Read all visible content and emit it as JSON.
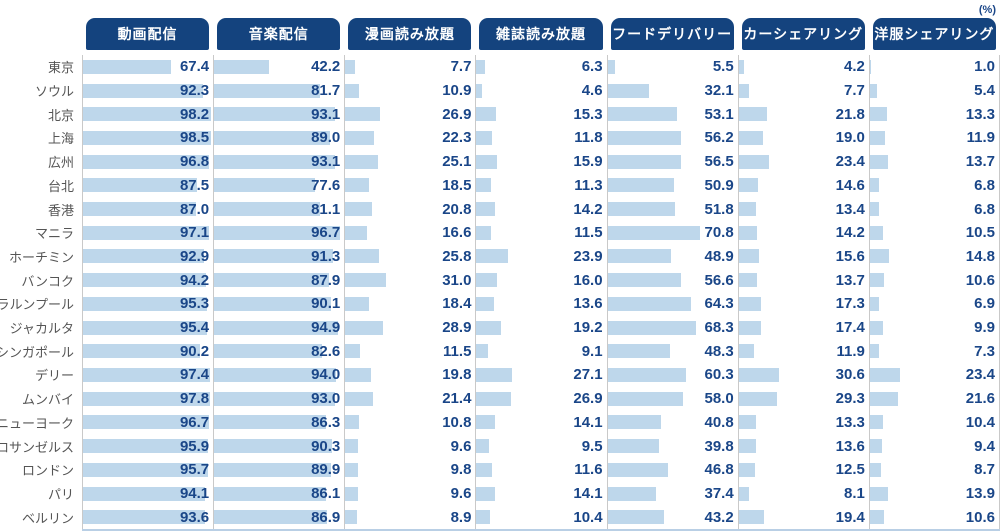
{
  "unit_label": "(%)",
  "chart_data": {
    "type": "bar",
    "orientation": "horizontal",
    "title": "",
    "unit_label": "(%)",
    "xlim": [
      0,
      100
    ],
    "grid": false,
    "legend_position": "column-headers-top",
    "categories": [
      "東京",
      "ソウル",
      "北京",
      "上海",
      "広州",
      "台北",
      "香港",
      "マニラ",
      "ホーチミン",
      "バンコク",
      "クアラルンプール",
      "ジャカルタ",
      "シンガポール",
      "デリー",
      "ムンバイ",
      "ニューヨーク",
      "ロサンゼルス",
      "ロンドン",
      "パリ",
      "ベルリン"
    ],
    "series": [
      {
        "name": "動画配信",
        "values": [
          67.4,
          92.3,
          98.2,
          98.5,
          96.8,
          87.5,
          87.0,
          97.1,
          92.9,
          94.2,
          95.3,
          95.4,
          90.2,
          97.4,
          97.8,
          96.7,
          95.9,
          95.7,
          94.1,
          93.6
        ]
      },
      {
        "name": "音楽配信",
        "values": [
          42.2,
          81.7,
          93.1,
          89.0,
          93.1,
          77.6,
          81.1,
          96.7,
          91.3,
          87.9,
          90.1,
          94.9,
          82.6,
          94.0,
          93.0,
          86.3,
          90.3,
          89.9,
          86.1,
          86.9
        ]
      },
      {
        "name": "漫画読み放題",
        "values": [
          7.7,
          10.9,
          26.9,
          22.3,
          25.1,
          18.5,
          20.8,
          16.6,
          25.8,
          31.0,
          18.4,
          28.9,
          11.5,
          19.8,
          21.4,
          10.8,
          9.6,
          9.8,
          9.6,
          8.9
        ]
      },
      {
        "name": "雑誌読み放題",
        "values": [
          6.3,
          4.6,
          15.3,
          11.8,
          15.9,
          11.3,
          14.2,
          11.5,
          23.9,
          16.0,
          13.6,
          19.2,
          9.1,
          27.1,
          26.9,
          14.1,
          9.5,
          11.6,
          14.1,
          10.4
        ]
      },
      {
        "name": "フードデリバリー",
        "values": [
          5.5,
          32.1,
          53.1,
          56.2,
          56.5,
          50.9,
          51.8,
          70.8,
          48.9,
          56.6,
          64.3,
          68.3,
          48.3,
          60.3,
          58.0,
          40.8,
          39.8,
          46.8,
          37.4,
          43.2
        ]
      },
      {
        "name": "カーシェアリング",
        "values": [
          4.2,
          7.7,
          21.8,
          19.0,
          23.4,
          14.6,
          13.4,
          14.2,
          15.6,
          13.7,
          17.3,
          17.4,
          11.9,
          30.6,
          29.3,
          13.3,
          13.6,
          12.5,
          8.1,
          19.4
        ]
      },
      {
        "name": "洋服シェアリング",
        "values": [
          1.0,
          5.4,
          13.3,
          11.9,
          13.7,
          6.8,
          6.8,
          10.5,
          14.8,
          10.6,
          6.9,
          9.9,
          7.3,
          23.4,
          21.6,
          10.4,
          9.4,
          8.7,
          13.9,
          10.6
        ]
      }
    ],
    "colors": {
      "header_bg": "#14437E",
      "header_text": "#FFFFFF",
      "bar": "#BED7EB",
      "value_text": "#1A4688",
      "label_text": "#555555",
      "separator": "#C9C9C9",
      "baseline": "#B9CFE5"
    }
  }
}
